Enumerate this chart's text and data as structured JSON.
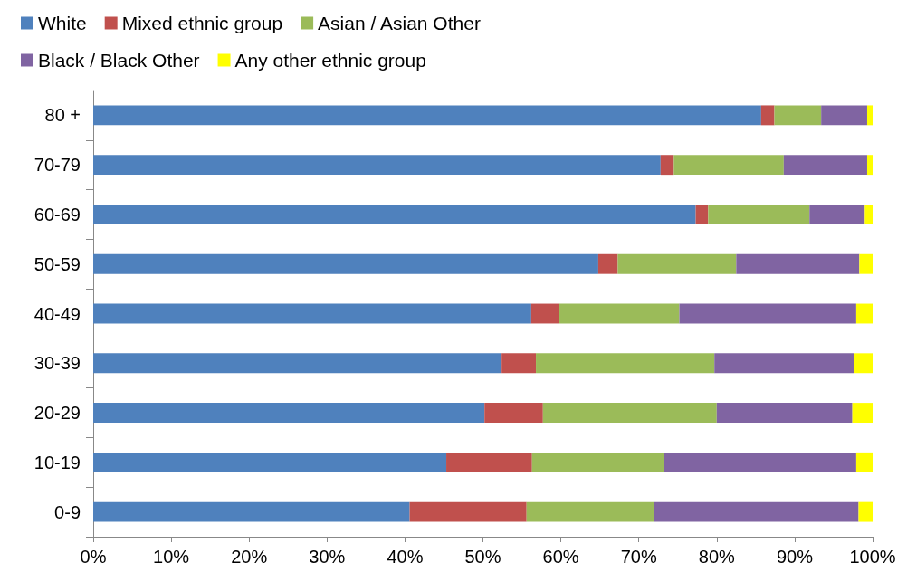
{
  "chart_data": {
    "type": "bar",
    "orientation": "horizontal",
    "stacked": true,
    "grid": false,
    "legend": "top",
    "categories": [
      "80 +",
      "70-79",
      "60-69",
      "50-59",
      "40-49",
      "30-39",
      "20-29",
      "10-19",
      "0-9"
    ],
    "xlim": [
      0,
      100
    ],
    "xticks": [
      {
        "value": 0,
        "label": "0%"
      },
      {
        "value": 10,
        "label": "10%"
      },
      {
        "value": 20,
        "label": "20%"
      },
      {
        "value": 30,
        "label": "30%"
      },
      {
        "value": 40,
        "label": "40%"
      },
      {
        "value": 50,
        "label": "50%"
      },
      {
        "value": 60,
        "label": "60%"
      },
      {
        "value": 70,
        "label": "70%"
      },
      {
        "value": 80,
        "label": "80%"
      },
      {
        "value": 90,
        "label": "90%"
      },
      {
        "value": 100,
        "label": "100%"
      }
    ],
    "series": [
      {
        "name": "White",
        "color": "#4f81bd",
        "values": [
          85.7,
          72.8,
          77.3,
          64.8,
          56.2,
          52.4,
          50.2,
          45.3,
          40.6
        ]
      },
      {
        "name": "Mixed ethnic group",
        "color": "#c0504d",
        "values": [
          1.7,
          1.7,
          1.6,
          2.5,
          3.6,
          4.4,
          7.5,
          11.0,
          15.0
        ]
      },
      {
        "name": "Asian / Asian Other",
        "color": "#9bbb59",
        "values": [
          6.0,
          14.1,
          13.0,
          15.2,
          15.4,
          22.9,
          22.3,
          16.9,
          16.3
        ]
      },
      {
        "name": "Black / Black Other",
        "color": "#8064a2",
        "values": [
          5.9,
          10.7,
          7.1,
          15.8,
          22.7,
          17.9,
          17.4,
          24.7,
          26.3
        ]
      },
      {
        "name": "Any other ethnic group",
        "color": "#ffff00",
        "values": [
          0.7,
          0.7,
          1.0,
          1.7,
          2.1,
          2.4,
          2.6,
          2.1,
          1.8
        ]
      }
    ]
  }
}
